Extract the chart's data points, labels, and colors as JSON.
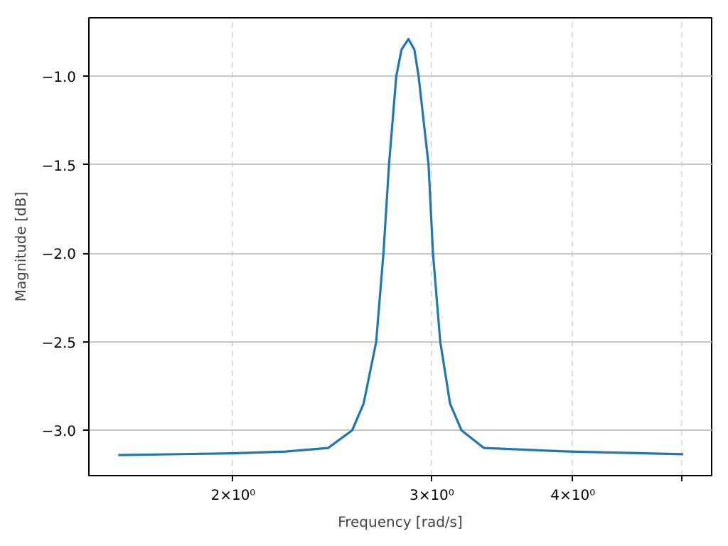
{
  "chart_data": {
    "type": "line",
    "xlabel": "Frequency [rad/s]",
    "ylabel": "Magnitude [dB]",
    "log": "x",
    "grid": true,
    "line_style": "solid",
    "xlim": [
      1.49,
      5.31
    ],
    "ylim": [
      -3.256,
      -0.67
    ],
    "xticks": [
      {
        "value": 2,
        "label": "2×10⁰"
      },
      {
        "value": 3,
        "label": "3×10⁰"
      },
      {
        "value": 4,
        "label": "4×10⁰"
      },
      {
        "value": 5,
        "label": null
      }
    ],
    "yticks": [
      {
        "value": -3.0,
        "label": "−3.0"
      },
      {
        "value": -2.5,
        "label": "−2.5"
      },
      {
        "value": -2.0,
        "label": "−2.0"
      },
      {
        "value": -1.5,
        "label": "−1.5"
      },
      {
        "value": -1.0,
        "label": "−1.0"
      }
    ],
    "series": [
      {
        "color": "#1f77b4",
        "x": [
          1.582,
          2.0,
          2.226,
          2.428,
          2.55,
          2.61,
          2.678,
          2.718,
          2.749,
          2.79,
          2.82,
          2.86,
          2.895,
          2.92,
          2.98,
          3.007,
          3.052,
          3.114,
          3.187,
          3.337,
          3.97,
          5.01
        ],
        "values": [
          -3.14,
          -3.13,
          -3.12,
          -3.1,
          -3.0,
          -2.85,
          -2.5,
          -2.0,
          -1.5,
          -1.0,
          -0.85,
          -0.79,
          -0.85,
          -1.0,
          -1.5,
          -2.0,
          -2.5,
          -2.85,
          -3.0,
          -3.1,
          -3.12,
          -3.135
        ]
      }
    ]
  }
}
